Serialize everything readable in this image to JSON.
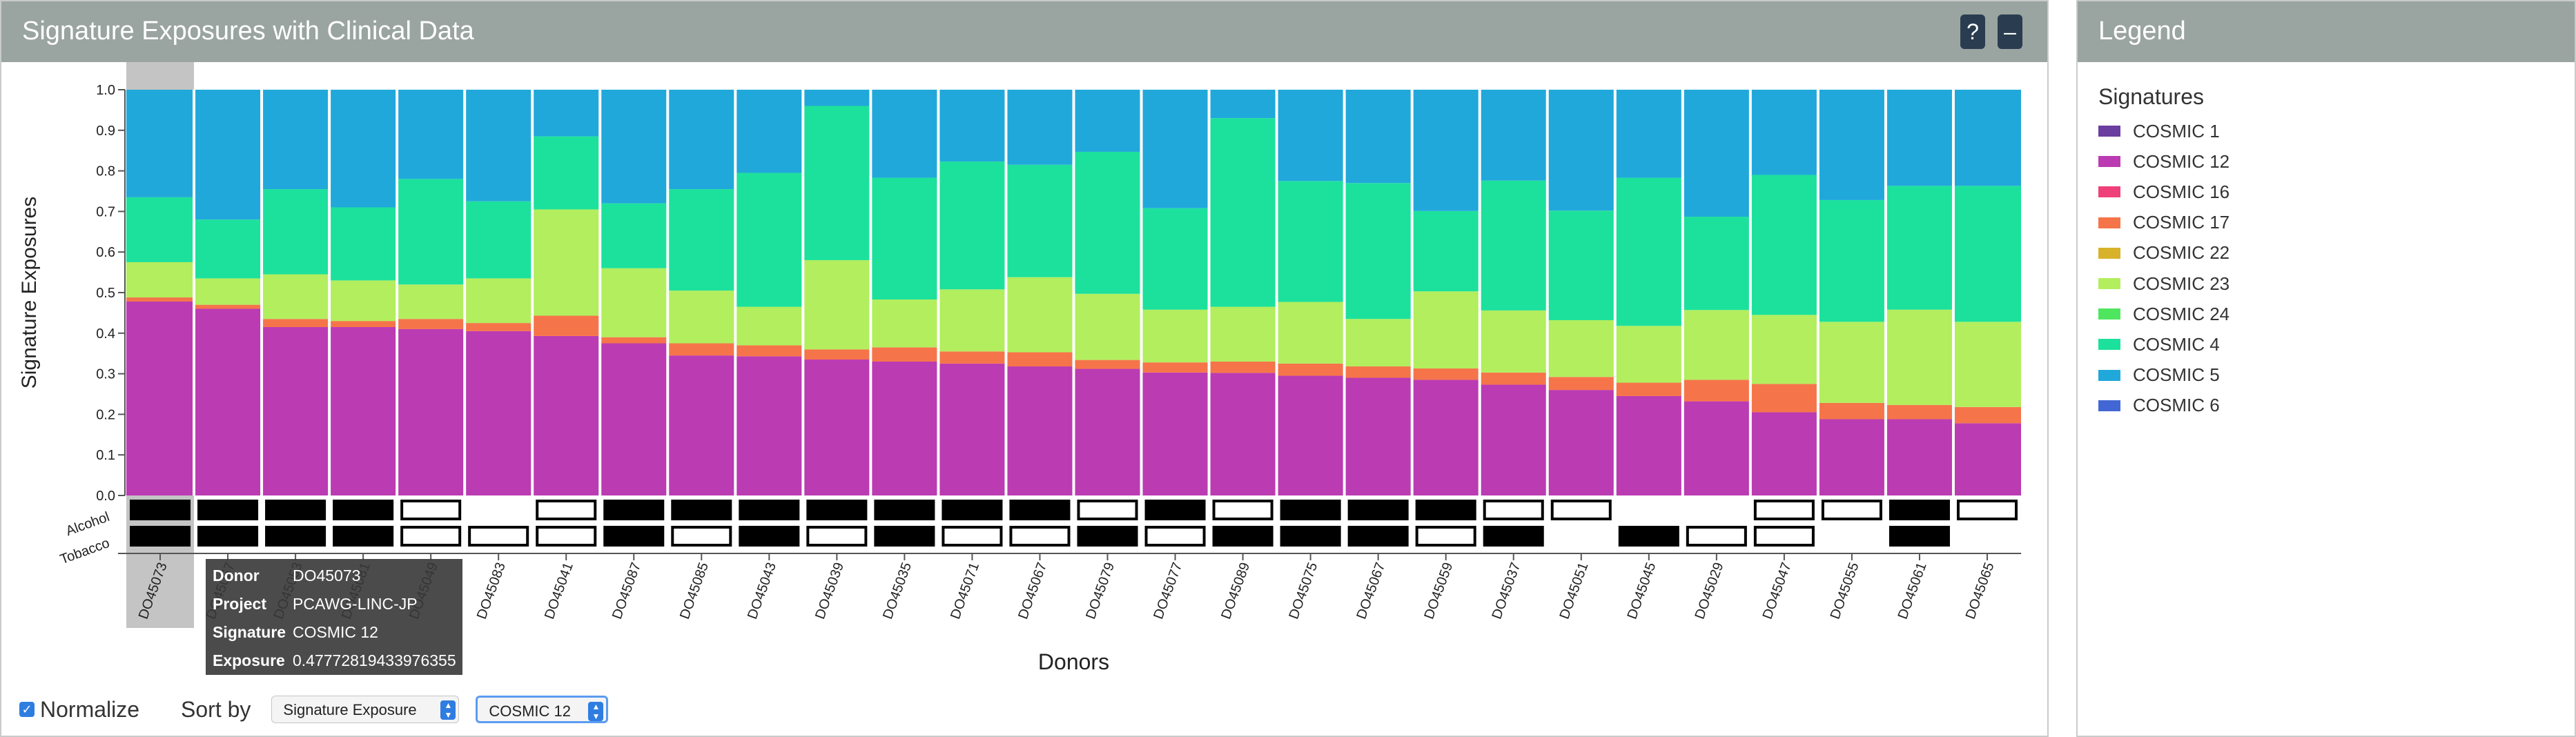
{
  "main_panel": {
    "title": "Signature Exposures with Clinical Data",
    "help_label": "?",
    "minimize_label": "–"
  },
  "legend_panel": {
    "title": "Legend",
    "section_title": "Signatures",
    "items": [
      {
        "label": "COSMIC 1",
        "color": "#6a3fa0"
      },
      {
        "label": "COSMIC 12",
        "color": "#bb3bb3"
      },
      {
        "label": "COSMIC 16",
        "color": "#f0407a"
      },
      {
        "label": "COSMIC 17",
        "color": "#f6744a"
      },
      {
        "label": "COSMIC 22",
        "color": "#d8b22a"
      },
      {
        "label": "COSMIC 23",
        "color": "#b2ee5e"
      },
      {
        "label": "COSMIC 24",
        "color": "#4ee65e"
      },
      {
        "label": "COSMIC 4",
        "color": "#1ce19c"
      },
      {
        "label": "COSMIC 5",
        "color": "#21a8db"
      },
      {
        "label": "COSMIC 6",
        "color": "#4267d4"
      }
    ]
  },
  "controls": {
    "normalize_label": "Normalize",
    "normalize_checked": true,
    "sort_by_label": "Sort by",
    "sort_value": "Signature Exposure",
    "signature_value": "COSMIC 12"
  },
  "tooltip": {
    "rows": [
      {
        "key": "Donor",
        "value": "DO45073"
      },
      {
        "key": "Project",
        "value": "PCAWG-LINC-JP"
      },
      {
        "key": "Signature",
        "value": "COSMIC 12"
      },
      {
        "key": "Exposure",
        "value": "0.47772819433976355"
      }
    ]
  },
  "chart_data": {
    "type": "bar",
    "stacked": true,
    "normalized": true,
    "ylabel": "Signature Exposures",
    "xlabel": "Donors",
    "ylim": [
      0,
      1
    ],
    "yticks": [
      "0.0",
      "0.1",
      "0.2",
      "0.3",
      "0.4",
      "0.5",
      "0.6",
      "0.7",
      "0.8",
      "0.9",
      "1.0"
    ],
    "highlighted_category": "DO45073",
    "categories": [
      "DO45073",
      "DO45057",
      "DO45053",
      "DO45081",
      "DO45049",
      "DO45083",
      "DO45041",
      "DO45087",
      "DO45085",
      "DO45043",
      "DO45039",
      "DO45035",
      "DO45071",
      "DO45067",
      "DO45079",
      "DO45077",
      "DO45089",
      "DO45075",
      "DO45067",
      "DO45059",
      "DO45037",
      "DO45051",
      "DO45045",
      "DO45029",
      "DO45047",
      "DO45055",
      "DO45061",
      "DO45065"
    ],
    "series": [
      {
        "name": "COSMIC 12",
        "color": "#bb3bb3",
        "values": [
          0.478,
          0.46,
          0.415,
          0.415,
          0.41,
          0.405,
          0.393,
          0.375,
          0.345,
          0.343,
          0.335,
          0.33,
          0.325,
          0.318,
          0.312,
          0.303,
          0.302,
          0.295,
          0.29,
          0.285,
          0.273,
          0.26,
          0.245,
          0.232,
          0.205,
          0.188,
          0.188,
          0.178
        ]
      },
      {
        "name": "COSMIC 17",
        "color": "#f6744a",
        "values": [
          0.01,
          0.01,
          0.02,
          0.015,
          0.025,
          0.02,
          0.05,
          0.015,
          0.03,
          0.027,
          0.025,
          0.035,
          0.03,
          0.035,
          0.022,
          0.025,
          0.028,
          0.03,
          0.028,
          0.028,
          0.03,
          0.032,
          0.033,
          0.053,
          0.07,
          0.04,
          0.035,
          0.04
        ]
      },
      {
        "name": "COSMIC 23",
        "color": "#b2ee5e",
        "values": [
          0.087,
          0.065,
          0.11,
          0.1,
          0.085,
          0.11,
          0.262,
          0.17,
          0.13,
          0.095,
          0.22,
          0.118,
          0.153,
          0.185,
          0.163,
          0.13,
          0.135,
          0.152,
          0.117,
          0.19,
          0.153,
          0.14,
          0.14,
          0.172,
          0.17,
          0.2,
          0.235,
          0.21
        ]
      },
      {
        "name": "COSMIC 4",
        "color": "#1ce19c",
        "values": [
          0.16,
          0.145,
          0.21,
          0.18,
          0.26,
          0.19,
          0.18,
          0.16,
          0.25,
          0.33,
          0.38,
          0.3,
          0.315,
          0.277,
          0.35,
          0.25,
          0.465,
          0.298,
          0.335,
          0.198,
          0.32,
          0.27,
          0.365,
          0.23,
          0.345,
          0.3,
          0.305,
          0.335
        ]
      },
      {
        "name": "COSMIC 5",
        "color": "#21a8db",
        "values": [
          0.265,
          0.32,
          0.245,
          0.29,
          0.22,
          0.275,
          0.115,
          0.28,
          0.245,
          0.205,
          0.04,
          0.217,
          0.177,
          0.185,
          0.153,
          0.292,
          0.07,
          0.225,
          0.23,
          0.299,
          0.224,
          0.298,
          0.217,
          0.313,
          0.21,
          0.272,
          0.237,
          0.237
        ]
      }
    ],
    "clinical_tracks": [
      {
        "name": "Alcohol",
        "values": [
          1,
          1,
          1,
          1,
          0,
          null,
          0,
          1,
          1,
          1,
          1,
          1,
          1,
          1,
          0,
          1,
          0,
          1,
          1,
          1,
          0,
          0,
          null,
          null,
          0,
          0,
          1,
          0
        ]
      },
      {
        "name": "Tobacco",
        "values": [
          1,
          1,
          1,
          1,
          0,
          0,
          0,
          1,
          0,
          1,
          0,
          1,
          0,
          0,
          1,
          0,
          1,
          1,
          1,
          0,
          1,
          null,
          1,
          0,
          0,
          null,
          1,
          null
        ]
      }
    ]
  }
}
